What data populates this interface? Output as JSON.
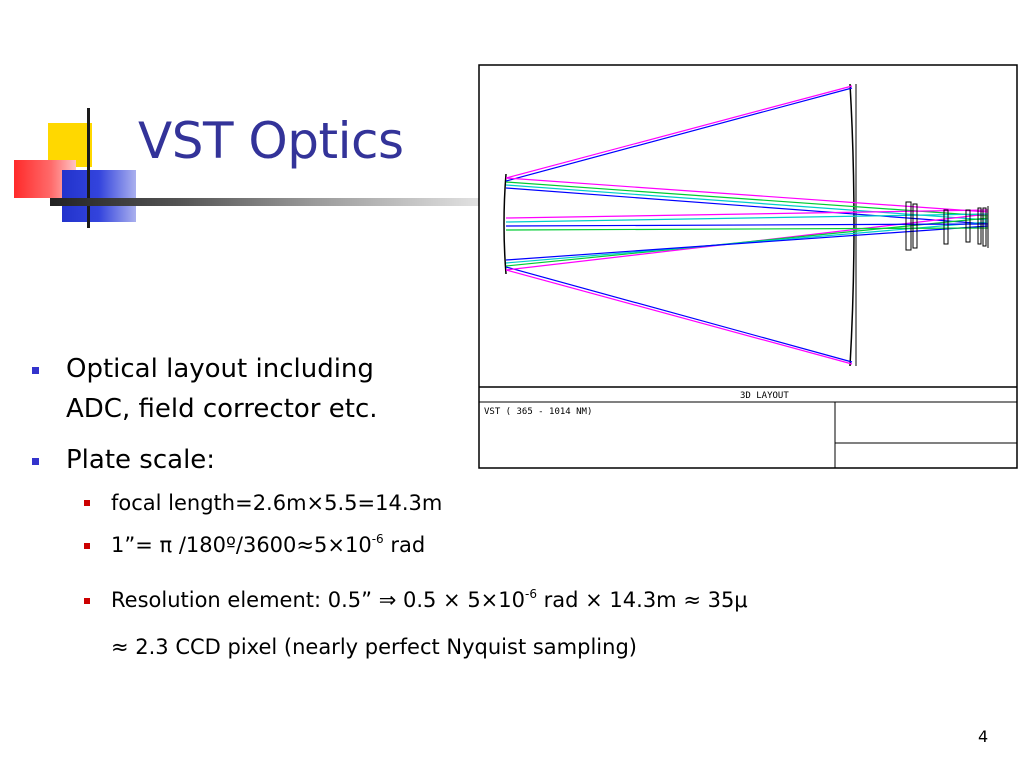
{
  "slide": {
    "title": "VST Optics",
    "page_number": "4"
  },
  "bullets": [
    {
      "line1": "Optical layout including",
      "line2": "ADC, field corrector etc."
    },
    {
      "text": "Plate scale:"
    }
  ],
  "subbullets": {
    "focal": "focal length=2.6m×5.5=14.3m",
    "arcsec": {
      "pre": "1”= π /180º/3600≈5×10",
      "exp": "-6",
      "post": " rad"
    },
    "resolution": {
      "pre": "Resolution element: 0.5” ⇒ 0.5 × 5×10",
      "exp": "-6",
      "post": " rad × 14.3m ≈ 35μ"
    },
    "ccd": "≈ 2.3 CCD pixel (nearly perfect Nyquist sampling)"
  },
  "diagram": {
    "layout_label": "3D LAYOUT",
    "system_label": "VST ( 365 - 1014 NM)"
  },
  "colors": {
    "title": "#333399",
    "bullet_level1": "#3333cc",
    "bullet_level2": "#cc0000",
    "ray_magenta": "#ff00ff",
    "ray_blue": "#0000ff",
    "ray_green": "#00cc33",
    "ray_cyan": "#00cccc"
  }
}
